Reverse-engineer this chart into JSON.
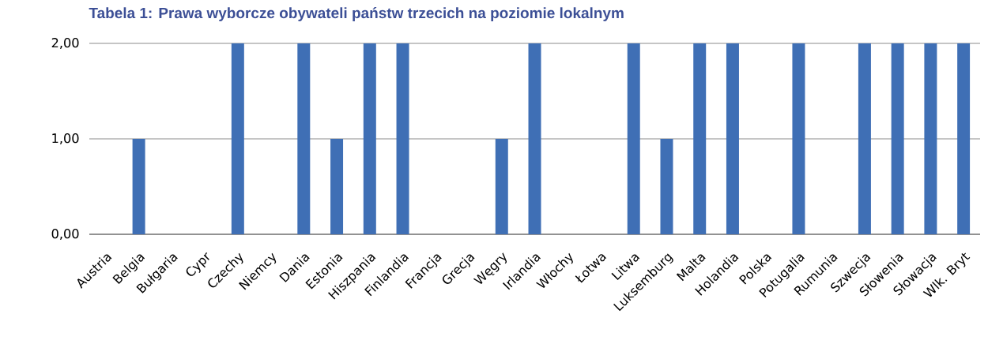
{
  "chart_data": {
    "type": "bar",
    "title": "Tabela 1: Prawa wyborcze obywateli państw trzecich na poziomie lokalnym",
    "categories": [
      "Austria",
      "Belgia",
      "Bułgaria",
      "Cypr",
      "Czechy",
      "Niemcy",
      "Dania",
      "Estonia",
      "Hiszpania",
      "Finlandia",
      "Francja",
      "Grecja",
      "Węgry",
      "Irlandia",
      "Włochy",
      "Łotwa",
      "Litwa",
      "Luksemburg",
      "Malta",
      "Holandia",
      "Polska",
      "Potugalia",
      "Rumunia",
      "Szwecja",
      "Słowenia",
      "Słowacja",
      "Wlk. Bryt"
    ],
    "values": [
      0,
      1,
      0,
      0,
      2,
      0,
      2,
      1,
      2,
      2,
      0,
      0,
      1,
      2,
      0,
      0,
      2,
      1,
      2,
      2,
      0,
      2,
      0,
      2,
      2,
      2,
      2
    ],
    "color": "#3f6fb5",
    "ylim": [
      0,
      2
    ],
    "yticks": [
      {
        "value": 0,
        "label": "0,00"
      },
      {
        "value": 1,
        "label": "1,00"
      },
      {
        "value": 2,
        "label": "2,00"
      }
    ],
    "grid": "y"
  }
}
